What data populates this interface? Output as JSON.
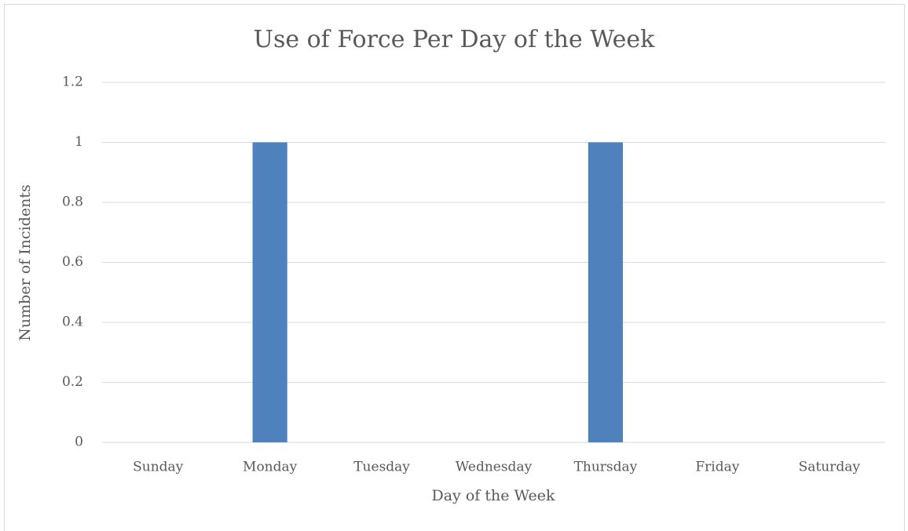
{
  "chart_data": {
    "type": "bar",
    "title": "Use of Force Per Day of the Week",
    "x_label": "Day of the Week",
    "y_label": "Number of Incidents",
    "categories": [
      "Sunday",
      "Monday",
      "Tuesday",
      "Wednesday",
      "Thursday",
      "Friday",
      "Saturday"
    ],
    "values": [
      0,
      1,
      0,
      0,
      1,
      0,
      0
    ],
    "color": "#4f81bd",
    "ylim": [
      0,
      1.2
    ],
    "yticks": [
      0,
      0.2,
      0.4,
      0.6,
      0.8,
      1,
      1.2
    ],
    "grid": true
  }
}
